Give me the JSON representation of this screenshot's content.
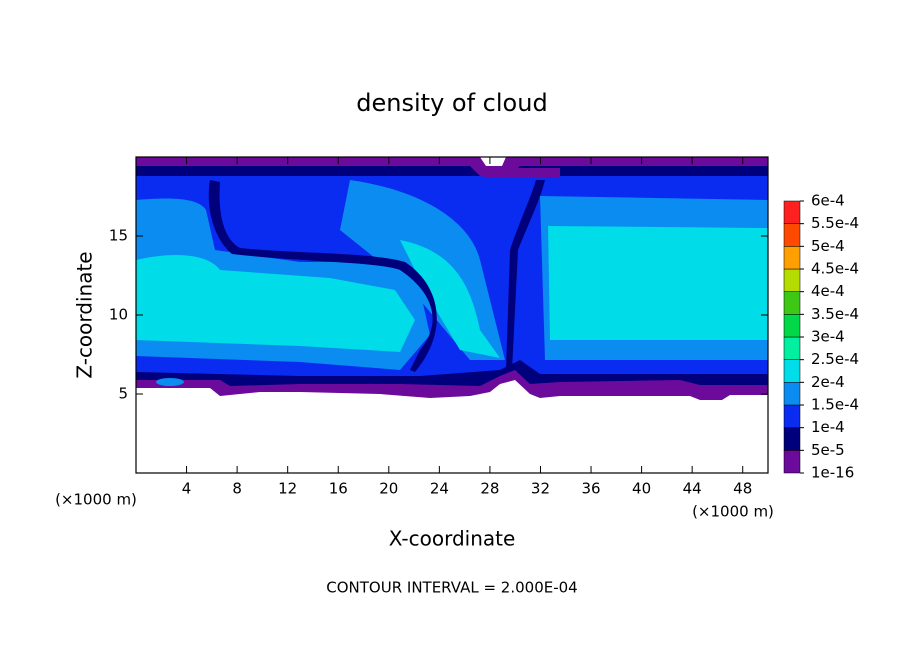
{
  "chart_data": {
    "type": "contour",
    "title": "density of cloud",
    "xlabel": "X-coordinate",
    "ylabel": "Z-coordinate",
    "x_unit_left": "(×1000 m)",
    "x_unit_right": "(×1000 m)",
    "footer": "CONTOUR INTERVAL = 2.000E-04",
    "xlim": [
      0,
      50
    ],
    "ylim": [
      0,
      20
    ],
    "xticks": [
      4,
      8,
      12,
      16,
      20,
      24,
      28,
      32,
      36,
      40,
      44,
      48
    ],
    "yticks": [
      5,
      10,
      15
    ],
    "colorbar": {
      "levels": [
        {
          "value": 1e-16,
          "label": "1e-16"
        },
        {
          "value": 5e-05,
          "label": "5e-5"
        },
        {
          "value": 0.0001,
          "label": "1e-4"
        },
        {
          "value": 0.00015,
          "label": "1.5e-4"
        },
        {
          "value": 0.0002,
          "label": "2e-4"
        },
        {
          "value": 0.00025,
          "label": "2.5e-4"
        },
        {
          "value": 0.0003,
          "label": "3e-4"
        },
        {
          "value": 0.00035,
          "label": "3.5e-4"
        },
        {
          "value": 0.0004,
          "label": "4e-4"
        },
        {
          "value": 0.00045,
          "label": "4.5e-4"
        },
        {
          "value": 0.0005,
          "label": "5e-4"
        },
        {
          "value": 0.00055,
          "label": "5.5e-4"
        },
        {
          "value": 0.0006,
          "label": "6e-4"
        }
      ],
      "colors": [
        "#6c0a9c",
        "#00007c",
        "#0a2cf0",
        "#0a8cf0",
        "#00dce8",
        "#00f0a0",
        "#00d848",
        "#3cc814",
        "#b4dc00",
        "#ffa000",
        "#ff4800",
        "#ff2020",
        "#ff8c8c"
      ]
    }
  }
}
